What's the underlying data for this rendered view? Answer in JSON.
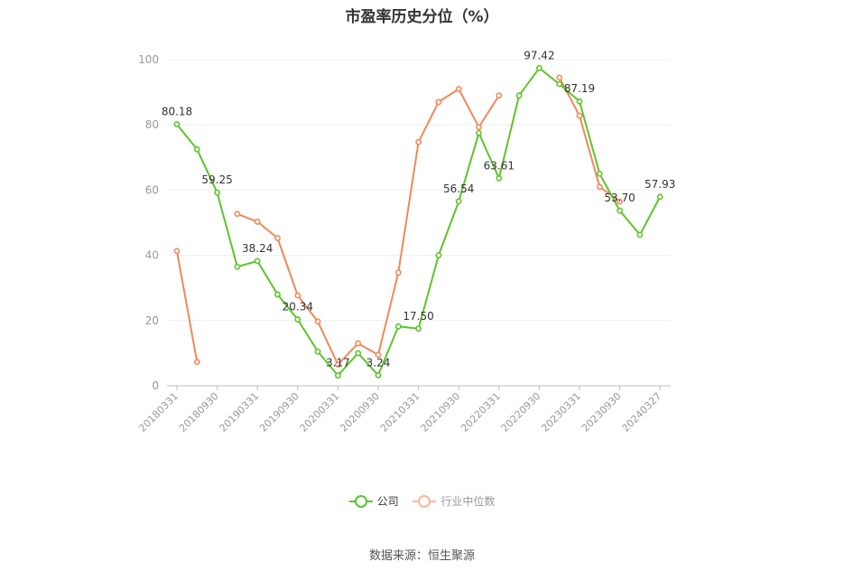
{
  "chart_data": {
    "type": "line",
    "title": "市盈率历史分位（%）",
    "ylim": [
      0,
      100
    ],
    "yticks": [
      0,
      20,
      40,
      60,
      80,
      100
    ],
    "grid": true,
    "legend_position": "bottom",
    "x": [
      "20180331",
      "20180630",
      "20180930",
      "20181231",
      "20190331",
      "20190630",
      "20190930",
      "20191231",
      "20200331",
      "20200630",
      "20200930",
      "20201231",
      "20210331",
      "20210630",
      "20210930",
      "20211231",
      "20220331",
      "20220630",
      "20220930",
      "20221231",
      "20230331",
      "20230630",
      "20230930",
      "20231231",
      "20240327"
    ],
    "x_tick_labels": [
      "20180331",
      "20180930",
      "20190331",
      "20190930",
      "20200331",
      "20200930",
      "20210331",
      "20210930",
      "20220331",
      "20220930",
      "20230331",
      "20230930",
      "20240327"
    ],
    "series": [
      {
        "name": "公司",
        "color": "#5dc42d",
        "values": [
          80.18,
          72.5,
          59.25,
          36.5,
          38.24,
          28.0,
          20.34,
          10.5,
          3.17,
          10.0,
          3.24,
          18.2,
          17.5,
          40.0,
          56.54,
          77.5,
          63.61,
          89.0,
          97.42,
          92.5,
          87.19,
          65.0,
          53.7,
          46.3,
          57.93
        ]
      },
      {
        "name": "行业中位数",
        "color": "#f0895a",
        "values": [
          41.3,
          7.3,
          null,
          52.7,
          50.3,
          45.3,
          27.7,
          19.7,
          6.5,
          13.0,
          9.5,
          34.7,
          74.7,
          87.0,
          91.0,
          79.3,
          89.0,
          null,
          null,
          94.5,
          82.8,
          61.0,
          56.5,
          null,
          null
        ]
      }
    ],
    "data_labels": [
      {
        "index": 0,
        "text": "80.18"
      },
      {
        "index": 2,
        "text": "59.25"
      },
      {
        "index": 4,
        "text": "38.24"
      },
      {
        "index": 6,
        "text": "20.34"
      },
      {
        "index": 8,
        "text": "3.17"
      },
      {
        "index": 10,
        "text": "3.24"
      },
      {
        "index": 12,
        "text": "17.50"
      },
      {
        "index": 14,
        "text": "56.54"
      },
      {
        "index": 16,
        "text": "63.61"
      },
      {
        "index": 18,
        "text": "97.42"
      },
      {
        "index": 20,
        "text": "87.19"
      },
      {
        "index": 22,
        "text": "53.70"
      },
      {
        "index": 24,
        "text": "57.93"
      }
    ]
  },
  "legend": {
    "company_label": "公司",
    "industry_label": "行业中位数"
  },
  "source_text": "数据来源：恒生聚源"
}
